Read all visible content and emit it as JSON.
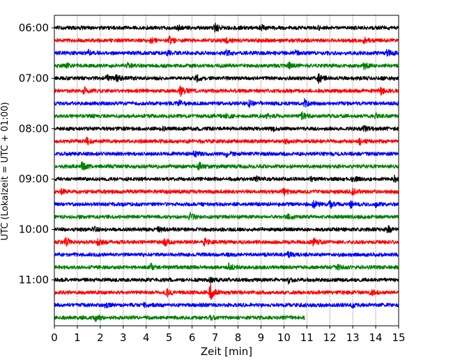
{
  "chart_data": {
    "type": "line",
    "title": "",
    "xlabel": "Zeit  [min]",
    "ylabel": "UTC (Lokalzeit = UTC + 01:00)",
    "xlim": [
      0,
      15
    ],
    "x_ticks": [
      "0",
      "1",
      "2",
      "3",
      "4",
      "5",
      "6",
      "7",
      "8",
      "9",
      "10",
      "11",
      "12",
      "13",
      "14",
      "15"
    ],
    "y_ticks": [
      "06:00",
      "07:00",
      "08:00",
      "09:00",
      "10:00",
      "11:00"
    ],
    "grid": "vertical dotted at each minute",
    "colors": [
      "#000000",
      "#ff0000",
      "#0000ff",
      "#008000"
    ],
    "trace_interval_min": 15,
    "trace_start": "06:00",
    "traces": [
      {
        "start": "06:00",
        "color": "#000000",
        "end_min": 15,
        "events": [
          {
            "t": 7.0,
            "amp": 1.0
          },
          {
            "t": 9.0,
            "amp": 0.45
          },
          {
            "t": 11.5,
            "amp": 0.35
          },
          {
            "t": 5.4,
            "amp": 0.35
          }
        ]
      },
      {
        "start": "06:15",
        "color": "#ff0000",
        "end_min": 15,
        "events": [
          {
            "t": 5.0,
            "amp": 0.7
          },
          {
            "t": 13.5,
            "amp": 0.6
          },
          {
            "t": 4.2,
            "amp": 0.4
          },
          {
            "t": 7.5,
            "amp": 0.35
          }
        ]
      },
      {
        "start": "06:30",
        "color": "#0000ff",
        "end_min": 15,
        "events": [
          {
            "t": 1.5,
            "amp": 0.4
          },
          {
            "t": 4.9,
            "amp": 0.6
          },
          {
            "t": 7.5,
            "amp": 0.45
          },
          {
            "t": 10.5,
            "amp": 0.35
          },
          {
            "t": 14.5,
            "amp": 0.7
          }
        ]
      },
      {
        "start": "06:45",
        "color": "#008000",
        "end_min": 15,
        "events": [
          {
            "t": 0.5,
            "amp": 0.4
          },
          {
            "t": 3.2,
            "amp": 0.35
          },
          {
            "t": 10.2,
            "amp": 0.6
          },
          {
            "t": 13.5,
            "amp": 0.6
          }
        ]
      },
      {
        "start": "07:00",
        "color": "#000000",
        "end_min": 15,
        "events": [
          {
            "t": 2.3,
            "amp": 0.5
          },
          {
            "t": 2.7,
            "amp": 0.5
          },
          {
            "t": 6.2,
            "amp": 0.55
          },
          {
            "t": 11.5,
            "amp": 0.9
          }
        ]
      },
      {
        "start": "07:15",
        "color": "#ff0000",
        "end_min": 15,
        "events": [
          {
            "t": 1.3,
            "amp": 0.7
          },
          {
            "t": 5.5,
            "amp": 0.85
          },
          {
            "t": 14.2,
            "amp": 0.75
          }
        ]
      },
      {
        "start": "07:30",
        "color": "#0000ff",
        "end_min": 15,
        "events": [
          {
            "t": 5.4,
            "amp": 0.6
          },
          {
            "t": 8.5,
            "amp": 0.6
          },
          {
            "t": 10.9,
            "amp": 0.6
          }
        ]
      },
      {
        "start": "07:45",
        "color": "#008000",
        "end_min": 15,
        "events": [
          {
            "t": 7.5,
            "amp": 0.35
          },
          {
            "t": 9.3,
            "amp": 0.35
          },
          {
            "t": 10.8,
            "amp": 0.6
          },
          {
            "t": 14.0,
            "amp": 0.35
          }
        ]
      },
      {
        "start": "08:00",
        "color": "#000000",
        "end_min": 15,
        "events": [
          {
            "t": 4.6,
            "amp": 0.45
          },
          {
            "t": 9.5,
            "amp": 0.4
          },
          {
            "t": 13.5,
            "amp": 0.55
          }
        ]
      },
      {
        "start": "08:15",
        "color": "#ff0000",
        "end_min": 15,
        "events": [
          {
            "t": 1.4,
            "amp": 0.5
          },
          {
            "t": 10.0,
            "amp": 0.5
          },
          {
            "t": 13.3,
            "amp": 0.55
          }
        ]
      },
      {
        "start": "08:30",
        "color": "#0000ff",
        "end_min": 15,
        "events": [
          {
            "t": 6.1,
            "amp": 0.45
          },
          {
            "t": 7.5,
            "amp": 0.5
          }
        ]
      },
      {
        "start": "08:45",
        "color": "#008000",
        "end_min": 15,
        "events": [
          {
            "t": 1.2,
            "amp": 0.8
          },
          {
            "t": 6.3,
            "amp": 0.7
          }
        ]
      },
      {
        "start": "09:00",
        "color": "#000000",
        "end_min": 15,
        "events": [
          {
            "t": 8.8,
            "amp": 0.4
          },
          {
            "t": 11.2,
            "amp": 0.45
          },
          {
            "t": 13.0,
            "amp": 0.4
          },
          {
            "t": 14.8,
            "amp": 0.55
          }
        ]
      },
      {
        "start": "09:15",
        "color": "#ff0000",
        "end_min": 15,
        "events": [
          {
            "t": 0.3,
            "amp": 0.4
          },
          {
            "t": 10.0,
            "amp": 0.55
          },
          {
            "t": 13.0,
            "amp": 0.45
          }
        ]
      },
      {
        "start": "09:30",
        "color": "#0000ff",
        "end_min": 15,
        "events": [
          {
            "t": 11.3,
            "amp": 0.6
          },
          {
            "t": 12.0,
            "amp": 0.7
          },
          {
            "t": 12.9,
            "amp": 0.6
          },
          {
            "t": 14.0,
            "amp": 0.5
          }
        ]
      },
      {
        "start": "09:45",
        "color": "#008000",
        "end_min": 15,
        "events": [
          {
            "t": 5.9,
            "amp": 0.65
          },
          {
            "t": 10.2,
            "amp": 0.35
          }
        ]
      },
      {
        "start": "10:00",
        "color": "#000000",
        "end_min": 15,
        "events": [
          {
            "t": 1.7,
            "amp": 0.5
          },
          {
            "t": 4.5,
            "amp": 0.5
          },
          {
            "t": 14.5,
            "amp": 0.65
          }
        ]
      },
      {
        "start": "10:15",
        "color": "#ff0000",
        "end_min": 15,
        "events": [
          {
            "t": 0.5,
            "amp": 0.7
          },
          {
            "t": 1.9,
            "amp": 0.55
          },
          {
            "t": 4.8,
            "amp": 0.7
          },
          {
            "t": 6.5,
            "amp": 0.7
          },
          {
            "t": 11.3,
            "amp": 0.8
          }
        ]
      },
      {
        "start": "10:30",
        "color": "#0000ff",
        "end_min": 15,
        "events": [
          {
            "t": 10.2,
            "amp": 0.55
          }
        ]
      },
      {
        "start": "10:45",
        "color": "#008000",
        "end_min": 15,
        "events": [
          {
            "t": 4.2,
            "amp": 0.45
          },
          {
            "t": 7.6,
            "amp": 0.75
          },
          {
            "t": 12.3,
            "amp": 0.4
          }
        ]
      },
      {
        "start": "11:00",
        "color": "#000000",
        "end_min": 15,
        "events": [
          {
            "t": 6.8,
            "amp": 0.45
          },
          {
            "t": 10.2,
            "amp": 0.55
          }
        ]
      },
      {
        "start": "11:15",
        "color": "#ff0000",
        "end_min": 15,
        "events": [
          {
            "t": 4.9,
            "amp": 0.8
          },
          {
            "t": 6.8,
            "amp": 1.6
          },
          {
            "t": 13.8,
            "amp": 0.75
          }
        ]
      },
      {
        "start": "11:30",
        "color": "#0000ff",
        "end_min": 15,
        "events": [
          {
            "t": 2.2,
            "amp": 0.4
          },
          {
            "t": 3.9,
            "amp": 0.4
          },
          {
            "t": 13.0,
            "amp": 0.3
          }
        ]
      },
      {
        "start": "11:45",
        "color": "#008000",
        "end_min": 10.9,
        "events": [
          {
            "t": 1.8,
            "amp": 0.6
          },
          {
            "t": 6.8,
            "amp": 0.3
          }
        ]
      }
    ]
  }
}
